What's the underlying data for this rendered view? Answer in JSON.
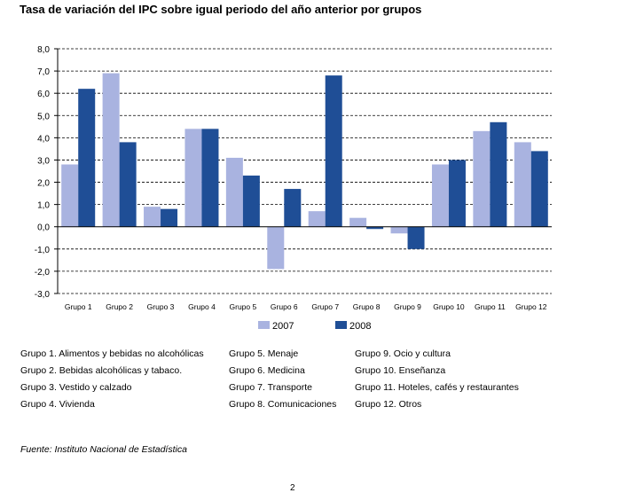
{
  "title": "Tasa de variación del IPC sobre igual periodo del año anterior por grupos",
  "chart_data": {
    "type": "bar",
    "title": "Tasa de variación del IPC sobre igual periodo del año anterior por grupos",
    "categories": [
      "Grupo 1",
      "Grupo 2",
      "Grupo 3",
      "Grupo 4",
      "Grupo 5",
      "Grupo 6",
      "Grupo 7",
      "Grupo 8",
      "Grupo 9",
      "Grupo 10",
      "Grupo 11",
      "Grupo 12"
    ],
    "series": [
      {
        "name": "2007",
        "color": "#a9b3e0",
        "values": [
          2.8,
          6.9,
          0.9,
          4.4,
          3.1,
          -1.9,
          0.7,
          0.4,
          -0.3,
          2.8,
          4.3,
          3.8
        ]
      },
      {
        "name": "2008",
        "color": "#1f4e96",
        "values": [
          6.2,
          3.8,
          0.8,
          4.4,
          2.3,
          1.7,
          6.8,
          -0.1,
          -1.0,
          3.0,
          4.7,
          3.4
        ]
      }
    ],
    "ylim": [
      -3.0,
      8.0
    ],
    "yticks": [
      "-3,0",
      "-2,0",
      "-1,0",
      "0,0",
      "1,0",
      "2,0",
      "3,0",
      "4,0",
      "5,0",
      "6,0",
      "7,0",
      "8,0"
    ],
    "grid": true,
    "legend_position": "bottom"
  },
  "group_legend": [
    [
      "Grupo 1. Alimentos y bebidas no alcohólicas",
      "Grupo 2. Bebidas alcohólicas y  tabaco.",
      "Grupo 3. Vestido y calzado",
      "Grupo 4. Vivienda"
    ],
    [
      "Grupo 5. Menaje",
      "Grupo 6. Medicina",
      "Grupo 7. Transporte",
      "Grupo 8. Comunicaciones"
    ],
    [
      "Grupo 9. Ocio y cultura",
      "Grupo 10. Enseñanza",
      "Grupo 11. Hoteles, cafés y restaurantes",
      "Grupo 12. Otros"
    ]
  ],
  "source": "Fuente: Instituto Nacional de Estadística",
  "page_number": "2"
}
